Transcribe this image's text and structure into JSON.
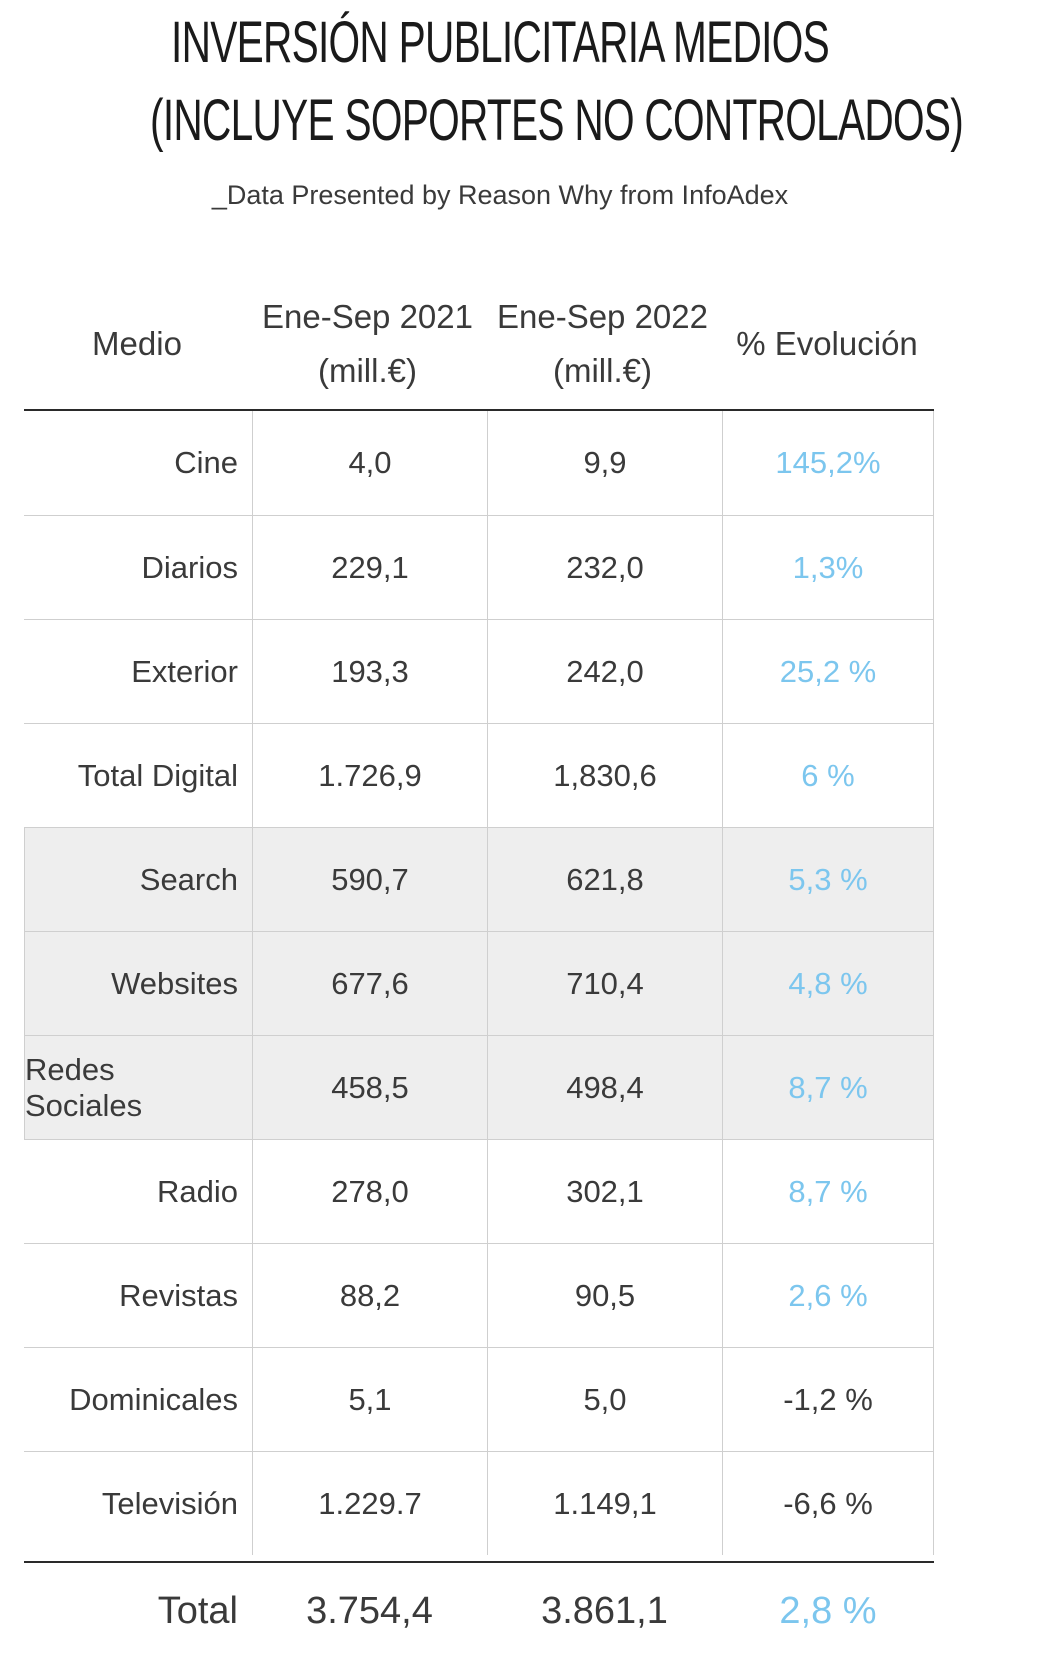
{
  "title": {
    "line1": "INVERSIÓN PUBLICITARIA MEDIOS",
    "line2": "(INCLUYE SOPORTES NO CONTROLADOS)"
  },
  "subtitle": "_Data Presented by Reason Why from InfoAdex",
  "table": {
    "headers": {
      "medio": "Medio",
      "col2021_line1": "Ene-Sep 2021",
      "col2021_line2": "(mill.€)",
      "col2022_line1": "Ene-Sep 2022",
      "col2022_line2": "(mill.€)",
      "evolucion": "% Evolución"
    },
    "rows": [
      {
        "medio": "Cine",
        "v2021": "4,0",
        "v2022": "9,9",
        "evol": "145,2%"
      },
      {
        "medio": "Diarios",
        "v2021": "229,1",
        "v2022": "232,0",
        "evol": "1,3%"
      },
      {
        "medio": "Exterior",
        "v2021": "193,3",
        "v2022": "242,0",
        "evol": "25,2 %"
      },
      {
        "medio": "Total Digital",
        "v2021": "1.726,9",
        "v2022": "1,830,6",
        "evol": "6 %"
      },
      {
        "medio": "Search",
        "v2021": "590,7",
        "v2022": "621,8",
        "evol": "5,3 %"
      },
      {
        "medio": "Websites",
        "v2021": "677,6",
        "v2022": "710,4",
        "evol": "4,8 %"
      },
      {
        "medio": "Redes Sociales",
        "v2021": "458,5",
        "v2022": "498,4",
        "evol": "8,7 %"
      },
      {
        "medio": "Radio",
        "v2021": "278,0",
        "v2022": "302,1",
        "evol": "8,7 %"
      },
      {
        "medio": "Revistas",
        "v2021": "88,2",
        "v2022": "90,5",
        "evol": "2,6 %"
      },
      {
        "medio": "Dominicales",
        "v2021": "5,1",
        "v2022": "5,0",
        "evol": "-1,2 %"
      },
      {
        "medio": "Televisión",
        "v2021": "1.229.7",
        "v2022": "1.149,1",
        "evol": "-6,6 %"
      }
    ],
    "total": {
      "medio": "Total",
      "v2021": "3.754,4",
      "v2022": "3.861,1",
      "evol": "2,8 %"
    }
  },
  "colors": {
    "positive": "#7cc6ee",
    "negative": "#3a3a3a",
    "shaded_row": "#eeeeee"
  }
}
